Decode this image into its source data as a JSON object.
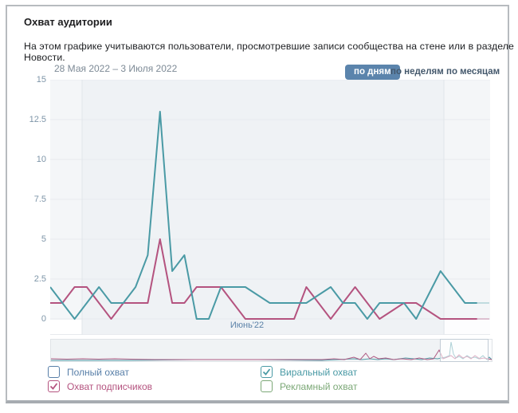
{
  "header": {
    "title": "Охват аудитории",
    "description": "На этом графике учитываются пользователи, просмотревшие записи сообщества на стене или в разделе Новости."
  },
  "toolbar": {
    "date_range": "28 Мая 2022 – 3 Июля 2022",
    "tabs": [
      {
        "label": "по дням",
        "active": true
      },
      {
        "label": "по неделям",
        "active": false
      },
      {
        "label": "по месяцам",
        "active": false
      }
    ],
    "active_tab_color": "#5b84ac"
  },
  "chart_data": {
    "type": "line",
    "title": "Охват аудитории",
    "x_range_label": "28 Мая 2022 – 3 Июля 2022",
    "x_axis_month_label": "Июнь'22",
    "y_ticks": [
      "15",
      "12.5",
      "10",
      "7.5",
      "5",
      "2.5",
      "0"
    ],
    "ylim": [
      0,
      15
    ],
    "grid": true,
    "x_points": 37,
    "series": [
      {
        "name": "Охват подписчиков",
        "color": "#b4537f",
        "values": [
          1,
          1,
          2,
          2,
          1,
          0,
          1,
          1,
          1,
          5,
          1,
          1,
          2,
          2,
          2,
          1,
          0,
          0,
          0,
          0,
          0,
          2,
          1,
          0,
          1,
          2,
          1,
          0,
          0.5,
          1,
          1,
          0.5,
          0,
          0,
          0,
          0,
          0
        ]
      },
      {
        "name": "Виральный охват",
        "color": "#4a9aa5",
        "values": [
          2,
          1,
          0,
          1,
          2,
          1,
          1,
          2,
          4,
          13,
          3,
          4,
          0,
          0,
          2,
          2,
          2,
          1.5,
          1,
          1,
          1,
          1,
          1.5,
          2,
          1,
          1,
          0,
          1,
          1,
          1,
          0,
          1.5,
          3,
          2,
          1,
          1,
          1
        ]
      }
    ],
    "minimap": {
      "selection": {
        "left_pct": 88.2,
        "width_pct": 10.7
      },
      "pink_points": [
        [
          0,
          24
        ],
        [
          20,
          24.5
        ],
        [
          40,
          24
        ],
        [
          60,
          24.5
        ],
        [
          80,
          24
        ],
        [
          100,
          24.5
        ],
        [
          130,
          25
        ],
        [
          160,
          25
        ],
        [
          190,
          25
        ],
        [
          220,
          25
        ],
        [
          250,
          25
        ],
        [
          280,
          25
        ],
        [
          310,
          25
        ],
        [
          340,
          25
        ],
        [
          355,
          24
        ],
        [
          368,
          25
        ],
        [
          380,
          22
        ],
        [
          388,
          25
        ],
        [
          395,
          17
        ],
        [
          400,
          24
        ],
        [
          405,
          21
        ],
        [
          411,
          24
        ],
        [
          420,
          23
        ],
        [
          430,
          25
        ],
        [
          440,
          24
        ],
        [
          452,
          25
        ],
        [
          462,
          23
        ],
        [
          472,
          25
        ],
        [
          480,
          24
        ],
        [
          487,
          13
        ],
        [
          492,
          24
        ],
        [
          497,
          22
        ],
        [
          502,
          20
        ],
        [
          507,
          24
        ],
        [
          512,
          19
        ],
        [
          517,
          23
        ],
        [
          522,
          21
        ],
        [
          527,
          24
        ],
        [
          532,
          20
        ],
        [
          538,
          24
        ],
        [
          543,
          23
        ],
        [
          548,
          24
        ],
        [
          553,
          25
        ]
      ],
      "teal_points": [
        [
          0,
          26
        ],
        [
          100,
          26
        ],
        [
          140,
          25.5
        ],
        [
          180,
          25
        ],
        [
          220,
          25
        ],
        [
          260,
          25
        ],
        [
          300,
          25.5
        ],
        [
          340,
          26
        ],
        [
          360,
          25
        ],
        [
          380,
          24
        ],
        [
          390,
          25
        ],
        [
          400,
          24
        ],
        [
          410,
          25
        ],
        [
          420,
          24
        ],
        [
          430,
          25
        ],
        [
          445,
          23
        ],
        [
          455,
          24
        ],
        [
          465,
          25
        ],
        [
          475,
          23
        ],
        [
          485,
          24
        ],
        [
          495,
          22
        ],
        [
          500,
          20
        ],
        [
          502,
          3
        ],
        [
          505,
          18
        ],
        [
          508,
          23
        ],
        [
          512,
          21
        ],
        [
          517,
          24
        ],
        [
          522,
          20
        ],
        [
          527,
          23
        ],
        [
          532,
          22
        ],
        [
          537,
          24
        ],
        [
          542,
          20
        ],
        [
          547,
          25
        ],
        [
          550,
          22
        ],
        [
          553,
          25
        ]
      ]
    }
  },
  "legend": {
    "items": [
      {
        "label": "Полный охват",
        "color": "#587fa8",
        "checked": false
      },
      {
        "label": "Охват подписчиков",
        "color": "#b4537f",
        "checked": true
      },
      {
        "label": "Виральный охват",
        "color": "#4a9aa5",
        "checked": true
      },
      {
        "label": "Рекламный охват",
        "color": "#7ca877",
        "checked": false
      }
    ]
  }
}
